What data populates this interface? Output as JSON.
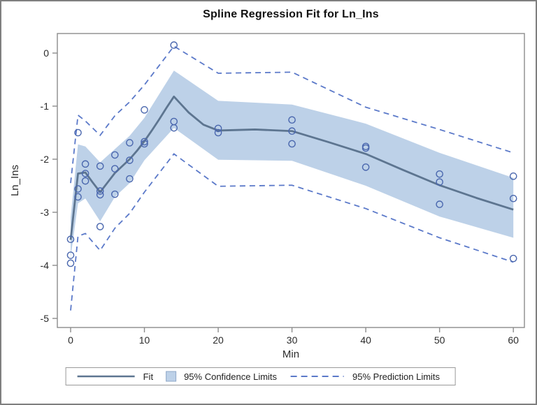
{
  "title": "Spline Regression Fit for Ln_Ins",
  "x_axis": {
    "label": "Min",
    "ticks": [
      "0",
      "10",
      "20",
      "30",
      "40",
      "50",
      "60"
    ]
  },
  "y_axis": {
    "label": "Ln_Ins",
    "ticks": [
      "0",
      "-1",
      "-2",
      "-3",
      "-4",
      "-5"
    ]
  },
  "legend": {
    "fit_label": "Fit",
    "confidence_label": "95% Confidence Limits",
    "prediction_label": "95% Prediction Limits"
  },
  "colors": {
    "fit_line": "#5d7590",
    "confidence_band": "#bdd1e8",
    "band_edge": "#b0c6e0",
    "prediction_line": "#5b79c9",
    "marker": "#4a67ae",
    "axis": "#8c8c8c",
    "tick_text": "#2b2b2b",
    "title_text": "#111111"
  },
  "chart_data": {
    "type": "line",
    "title": "Spline Regression Fit for Ln_Ins",
    "xlabel": "Min",
    "ylabel": "Ln_Ins",
    "xlim": [
      -1.8,
      61.5
    ],
    "ylim": [
      -5.17,
      0.37
    ],
    "x_ticks": [
      0,
      10,
      20,
      30,
      40,
      50,
      60
    ],
    "y_ticks": [
      0,
      -1,
      -2,
      -3,
      -4,
      -5
    ],
    "grid": false,
    "legend_position": "bottom",
    "fit": {
      "x": [
        0,
        1,
        2,
        3,
        4,
        5,
        6,
        7,
        8,
        9,
        10,
        11,
        12,
        13,
        14,
        16,
        18,
        20,
        25,
        30,
        35,
        40,
        45,
        50,
        55,
        60
      ],
      "y": [
        -3.52,
        -2.27,
        -2.25,
        -2.44,
        -2.62,
        -2.44,
        -2.26,
        -2.13,
        -2.0,
        -1.84,
        -1.66,
        -1.46,
        -1.25,
        -1.03,
        -0.82,
        -1.12,
        -1.35,
        -1.46,
        -1.44,
        -1.47,
        -1.68,
        -1.9,
        -2.2,
        -2.49,
        -2.73,
        -2.95
      ]
    },
    "confidence_band": {
      "x": [
        0,
        1,
        2,
        4,
        6,
        8,
        10,
        14,
        20,
        30,
        40,
        50,
        60
      ],
      "upper": [
        -3.1,
        -1.72,
        -1.76,
        -2.06,
        -1.81,
        -1.56,
        -1.22,
        -0.33,
        -0.9,
        -0.97,
        -1.33,
        -1.88,
        -2.35
      ],
      "lower": [
        -3.85,
        -2.83,
        -2.74,
        -3.17,
        -2.71,
        -2.45,
        -2.02,
        -1.41,
        -2.01,
        -2.03,
        -2.5,
        -3.08,
        -3.48
      ]
    },
    "prediction_limits": {
      "x": [
        0,
        1,
        2,
        4,
        6,
        8,
        10,
        14,
        20,
        30,
        40,
        50,
        60
      ],
      "upper": [
        -2.45,
        -1.17,
        -1.28,
        -1.55,
        -1.18,
        -0.92,
        -0.6,
        0.13,
        -0.38,
        -0.36,
        -1.02,
        -1.44,
        -1.88
      ],
      "lower": [
        -4.85,
        -3.45,
        -3.4,
        -3.72,
        -3.3,
        -3.02,
        -2.62,
        -1.9,
        -2.51,
        -2.49,
        -2.93,
        -3.48,
        -3.94
      ]
    },
    "observations": [
      [
        0,
        -3.51
      ],
      [
        0,
        -3.81
      ],
      [
        0,
        -3.96
      ],
      [
        1,
        -1.5
      ],
      [
        1,
        -2.56
      ],
      [
        1,
        -2.71
      ],
      [
        2,
        -2.09
      ],
      [
        2,
        -2.27
      ],
      [
        2,
        -2.41
      ],
      [
        4,
        -2.13
      ],
      [
        4,
        -2.6
      ],
      [
        4,
        -2.67
      ],
      [
        4,
        -3.27
      ],
      [
        6,
        -1.92
      ],
      [
        6,
        -2.18
      ],
      [
        6,
        -2.66
      ],
      [
        8,
        -1.69
      ],
      [
        8,
        -2.02
      ],
      [
        8,
        -2.37
      ],
      [
        10,
        -1.07
      ],
      [
        10,
        -1.67
      ],
      [
        10,
        -1.71
      ],
      [
        14,
        0.15
      ],
      [
        14,
        -1.29
      ],
      [
        14,
        -1.41
      ],
      [
        20,
        -1.42
      ],
      [
        20,
        -1.5
      ],
      [
        30,
        -1.26
      ],
      [
        30,
        -1.47
      ],
      [
        30,
        -1.71
      ],
      [
        40,
        -1.76
      ],
      [
        40,
        -1.79
      ],
      [
        40,
        -2.15
      ],
      [
        50,
        -2.28
      ],
      [
        50,
        -2.43
      ],
      [
        50,
        -2.85
      ],
      [
        60,
        -2.32
      ],
      [
        60,
        -2.74
      ],
      [
        60,
        -3.87
      ]
    ]
  }
}
